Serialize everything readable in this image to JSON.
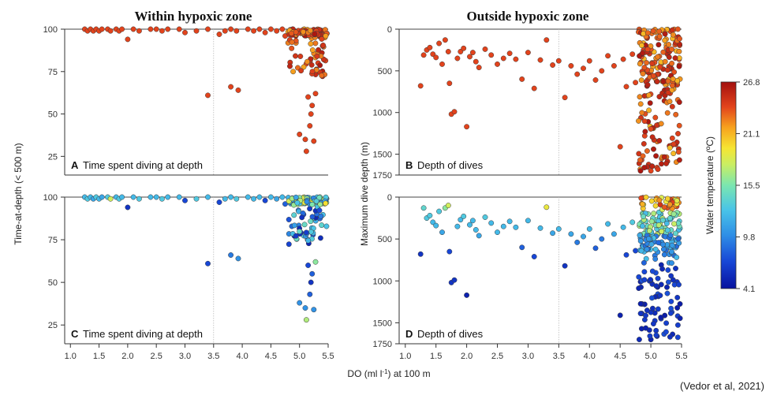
{
  "titles": {
    "left": "Within hypoxic zone",
    "right": "Outside hypoxic zone"
  },
  "x_axis": {
    "label": "DO (ml l",
    "label_sup": "-1",
    "label_tail": ") at 100 m"
  },
  "left_ylabel": "Time-at-depth (< 500 m)",
  "right_ylabel": "Maximum dive depth (m)",
  "colorbar": {
    "label": "Water temperature (ºC)",
    "ticks": [
      "26.8",
      "21.1",
      "15.5",
      "9.8",
      "4.1"
    ]
  },
  "credit": "(Vedor et al, 2021)",
  "panels": [
    {
      "letter": "A",
      "label": "Time spent diving at depth"
    },
    {
      "letter": "B",
      "label": "Depth of dives"
    },
    {
      "letter": "C",
      "label": "Time spent diving at depth"
    },
    {
      "letter": "D",
      "label": "Depth of dives"
    }
  ],
  "chart_data": [
    {
      "type": "scatter",
      "panel": "A",
      "xlabel": "DO (ml l-1) at 100 m",
      "ylabel": "Time-at-depth (< 500 m)",
      "xlim": [
        0.9,
        5.5
      ],
      "ylim": [
        14,
        100
      ],
      "xticks": [
        "1.0",
        "1.5",
        "2.0",
        "2.5",
        "3.0",
        "3.5",
        "4.0",
        "4.5",
        "5.0",
        "5.5"
      ],
      "yticks": [
        "100",
        "75",
        "50",
        "25"
      ],
      "reference_line_x": 3.5,
      "color_encoding": "water temperature (ºC), 4.1–26.8",
      "cluster_note": "dense cluster at DO 4.8–5.5, y 70–100, temperatures 21–26",
      "points": [
        [
          1.25,
          100,
          24
        ],
        [
          1.3,
          99,
          24
        ],
        [
          1.35,
          100,
          24
        ],
        [
          1.4,
          99,
          24
        ],
        [
          1.45,
          100,
          24
        ],
        [
          1.5,
          99,
          24
        ],
        [
          1.55,
          100,
          24
        ],
        [
          1.65,
          100,
          24
        ],
        [
          1.7,
          99,
          24
        ],
        [
          1.8,
          100,
          24
        ],
        [
          1.85,
          99,
          24
        ],
        [
          1.9,
          100,
          24
        ],
        [
          2.0,
          94,
          24
        ],
        [
          2.1,
          100,
          24
        ],
        [
          2.2,
          99,
          24
        ],
        [
          2.4,
          100,
          24
        ],
        [
          2.5,
          100,
          24
        ],
        [
          2.6,
          99,
          24
        ],
        [
          2.7,
          100,
          24
        ],
        [
          2.9,
          100,
          24
        ],
        [
          3.0,
          98,
          24
        ],
        [
          3.2,
          99,
          24
        ],
        [
          3.4,
          100,
          24
        ],
        [
          3.6,
          97,
          24
        ],
        [
          3.7,
          99,
          24
        ],
        [
          3.8,
          100,
          24
        ],
        [
          3.9,
          99,
          24
        ],
        [
          4.1,
          100,
          24
        ],
        [
          4.2,
          99,
          24
        ],
        [
          4.3,
          100,
          24
        ],
        [
          4.4,
          98,
          24
        ],
        [
          4.5,
          100,
          24
        ],
        [
          4.6,
          99,
          24
        ],
        [
          4.7,
          100,
          24
        ],
        [
          4.75,
          96,
          24
        ],
        [
          3.4,
          61,
          24
        ],
        [
          3.8,
          66,
          24
        ],
        [
          3.93,
          64,
          24
        ],
        [
          5.0,
          38,
          24
        ],
        [
          5.1,
          35,
          24
        ],
        [
          5.12,
          28,
          24
        ],
        [
          5.18,
          43,
          24
        ],
        [
          5.25,
          34,
          24
        ],
        [
          5.2,
          50,
          24
        ],
        [
          5.22,
          55,
          24
        ],
        [
          5.15,
          60,
          24
        ],
        [
          5.28,
          62,
          24
        ]
      ]
    },
    {
      "type": "scatter",
      "panel": "B",
      "xlabel": "DO (ml l-1) at 100 m",
      "ylabel": "Maximum dive depth (m)",
      "xlim": [
        0.9,
        5.5
      ],
      "ylim": [
        1750,
        0
      ],
      "y_inverted": true,
      "xticks": [
        "1.0",
        "1.5",
        "2.0",
        "2.5",
        "3.0",
        "3.5",
        "4.0",
        "4.5",
        "5.0",
        "5.5"
      ],
      "yticks": [
        "0",
        "500",
        "1000",
        "1500",
        "1750"
      ],
      "reference_line_x": 3.5,
      "color_encoding": "water temperature (ºC), 4.1–26.8",
      "cluster_note": "dense cluster at DO 4.8–5.5, depth 0–1700 m, temperatures 20–26",
      "points": [
        [
          1.25,
          680,
          24
        ],
        [
          1.3,
          310,
          24
        ],
        [
          1.35,
          250,
          24
        ],
        [
          1.4,
          220,
          24
        ],
        [
          1.45,
          300,
          24
        ],
        [
          1.5,
          340,
          24
        ],
        [
          1.55,
          170,
          24
        ],
        [
          1.6,
          420,
          24
        ],
        [
          1.65,
          130,
          24
        ],
        [
          1.7,
          270,
          24
        ],
        [
          1.72,
          650,
          24
        ],
        [
          1.75,
          1020,
          24
        ],
        [
          1.8,
          990,
          24
        ],
        [
          1.85,
          350,
          24
        ],
        [
          1.9,
          270,
          24
        ],
        [
          1.95,
          230,
          24
        ],
        [
          2.0,
          1170,
          24
        ],
        [
          2.05,
          330,
          24
        ],
        [
          2.1,
          280,
          24
        ],
        [
          2.15,
          390,
          24
        ],
        [
          2.2,
          460,
          24
        ],
        [
          2.3,
          240,
          24
        ],
        [
          2.4,
          310,
          24
        ],
        [
          2.5,
          420,
          24
        ],
        [
          2.6,
          350,
          24
        ],
        [
          2.7,
          290,
          24
        ],
        [
          2.8,
          360,
          24
        ],
        [
          2.9,
          600,
          24
        ],
        [
          3.0,
          280,
          24
        ],
        [
          3.1,
          710,
          24
        ],
        [
          3.2,
          370,
          24
        ],
        [
          3.3,
          130,
          24
        ],
        [
          3.4,
          430,
          24
        ],
        [
          3.5,
          380,
          24
        ],
        [
          3.6,
          820,
          24
        ],
        [
          3.7,
          440,
          24
        ],
        [
          3.8,
          540,
          24
        ],
        [
          3.9,
          470,
          24
        ],
        [
          4.0,
          380,
          24
        ],
        [
          4.1,
          610,
          24
        ],
        [
          4.2,
          500,
          24
        ],
        [
          4.3,
          320,
          24
        ],
        [
          4.4,
          440,
          24
        ],
        [
          4.5,
          1410,
          24
        ],
        [
          4.55,
          360,
          24
        ],
        [
          4.6,
          690,
          24
        ],
        [
          4.7,
          300,
          24
        ],
        [
          4.75,
          640,
          24
        ],
        [
          4.85,
          1570,
          24
        ],
        [
          4.9,
          1280,
          24
        ],
        [
          5.0,
          1700,
          24
        ],
        [
          5.1,
          1660,
          24
        ]
      ]
    },
    {
      "type": "scatter",
      "panel": "C",
      "xlabel": "DO (ml l-1) at 100 m",
      "ylabel": "Time-at-depth (< 500 m)",
      "xlim": [
        0.9,
        5.5
      ],
      "ylim": [
        14,
        100
      ],
      "xticks": [
        "1.0",
        "1.5",
        "2.0",
        "2.5",
        "3.0",
        "3.5",
        "4.0",
        "4.5",
        "5.0",
        "5.5"
      ],
      "yticks": [
        "100",
        "75",
        "50",
        "25"
      ],
      "reference_line_x": 3.5,
      "color_encoding": "water temperature (ºC), 4.1–26.8",
      "cluster_note": "dense cluster at DO 4.8–5.5, y 70–100, temperatures 5–20",
      "points": [
        [
          1.25,
          100,
          12
        ],
        [
          1.3,
          99,
          13
        ],
        [
          1.35,
          100,
          12
        ],
        [
          1.4,
          99,
          11
        ],
        [
          1.45,
          100,
          13
        ],
        [
          1.5,
          99,
          12
        ],
        [
          1.55,
          100,
          11
        ],
        [
          1.65,
          100,
          13
        ],
        [
          1.7,
          99,
          18
        ],
        [
          1.8,
          100,
          12
        ],
        [
          1.85,
          99,
          13
        ],
        [
          1.9,
          100,
          12
        ],
        [
          2.0,
          94,
          6
        ],
        [
          2.1,
          100,
          12
        ],
        [
          2.2,
          99,
          13
        ],
        [
          2.4,
          100,
          12
        ],
        [
          2.5,
          100,
          12
        ],
        [
          2.6,
          99,
          13
        ],
        [
          2.7,
          100,
          12
        ],
        [
          2.9,
          100,
          12
        ],
        [
          3.0,
          98,
          7
        ],
        [
          3.2,
          99,
          13
        ],
        [
          3.4,
          100,
          12
        ],
        [
          3.6,
          97,
          7
        ],
        [
          3.7,
          99,
          12
        ],
        [
          3.8,
          100,
          12
        ],
        [
          3.9,
          99,
          13
        ],
        [
          4.1,
          100,
          12
        ],
        [
          4.2,
          99,
          12
        ],
        [
          4.3,
          100,
          12
        ],
        [
          4.4,
          98,
          7
        ],
        [
          4.5,
          100,
          12
        ],
        [
          4.6,
          99,
          11
        ],
        [
          4.7,
          100,
          12
        ],
        [
          4.75,
          96,
          8
        ],
        [
          3.4,
          61,
          7
        ],
        [
          3.8,
          66,
          9
        ],
        [
          3.93,
          64,
          10
        ],
        [
          5.0,
          38,
          10
        ],
        [
          5.1,
          35,
          10
        ],
        [
          5.12,
          28,
          17
        ],
        [
          5.18,
          43,
          8
        ],
        [
          5.25,
          34,
          10
        ],
        [
          5.2,
          50,
          6
        ],
        [
          5.22,
          55,
          8
        ],
        [
          5.15,
          60,
          7
        ],
        [
          5.28,
          62,
          16
        ]
      ]
    },
    {
      "type": "scatter",
      "panel": "D",
      "xlabel": "DO (ml l-1) at 100 m",
      "ylabel": "Maximum dive depth (m)",
      "xlim": [
        0.9,
        5.5
      ],
      "ylim": [
        1750,
        0
      ],
      "y_inverted": true,
      "xticks": [
        "1.0",
        "1.5",
        "2.0",
        "2.5",
        "3.0",
        "3.5",
        "4.0",
        "4.5",
        "5.0",
        "5.5"
      ],
      "yticks": [
        "0",
        "500",
        "1000",
        "1500",
        "1750"
      ],
      "reference_line_x": 3.5,
      "color_encoding": "water temperature (ºC), 4.1–26.8",
      "cluster_note": "dense cluster at DO 4.8–5.5, depth 0–1700 m; shallow points warm (yellow/red), deep points cold (dark blue)",
      "points": [
        [
          1.25,
          680,
          6
        ],
        [
          1.3,
          130,
          14
        ],
        [
          1.35,
          250,
          13
        ],
        [
          1.4,
          220,
          13
        ],
        [
          1.45,
          300,
          12
        ],
        [
          1.5,
          340,
          12
        ],
        [
          1.55,
          170,
          13
        ],
        [
          1.6,
          420,
          11
        ],
        [
          1.65,
          130,
          16
        ],
        [
          1.7,
          100,
          18
        ],
        [
          1.72,
          650,
          7
        ],
        [
          1.75,
          1020,
          6
        ],
        [
          1.8,
          990,
          6
        ],
        [
          1.85,
          350,
          12
        ],
        [
          1.9,
          270,
          12
        ],
        [
          1.95,
          230,
          13
        ],
        [
          2.0,
          1170,
          5
        ],
        [
          2.05,
          330,
          12
        ],
        [
          2.1,
          280,
          12
        ],
        [
          2.15,
          390,
          12
        ],
        [
          2.2,
          460,
          11
        ],
        [
          2.3,
          240,
          13
        ],
        [
          2.4,
          310,
          12
        ],
        [
          2.5,
          420,
          12
        ],
        [
          2.6,
          350,
          12
        ],
        [
          2.7,
          290,
          12
        ],
        [
          2.8,
          360,
          12
        ],
        [
          2.9,
          600,
          8
        ],
        [
          3.0,
          280,
          12
        ],
        [
          3.1,
          710,
          7
        ],
        [
          3.2,
          370,
          12
        ],
        [
          3.3,
          120,
          19
        ],
        [
          3.4,
          430,
          11
        ],
        [
          3.5,
          380,
          12
        ],
        [
          3.6,
          820,
          6
        ],
        [
          3.7,
          440,
          11
        ],
        [
          3.8,
          540,
          9
        ],
        [
          3.9,
          470,
          11
        ],
        [
          4.0,
          380,
          12
        ],
        [
          4.1,
          610,
          8
        ],
        [
          4.2,
          500,
          9
        ],
        [
          4.3,
          320,
          12
        ],
        [
          4.4,
          440,
          11
        ],
        [
          4.5,
          1410,
          5
        ],
        [
          4.55,
          360,
          12
        ],
        [
          4.6,
          690,
          7
        ],
        [
          4.7,
          300,
          13
        ],
        [
          4.75,
          640,
          7
        ],
        [
          4.85,
          1570,
          5
        ],
        [
          4.9,
          1280,
          5
        ],
        [
          5.0,
          1700,
          5
        ],
        [
          5.1,
          1660,
          5
        ]
      ]
    }
  ]
}
